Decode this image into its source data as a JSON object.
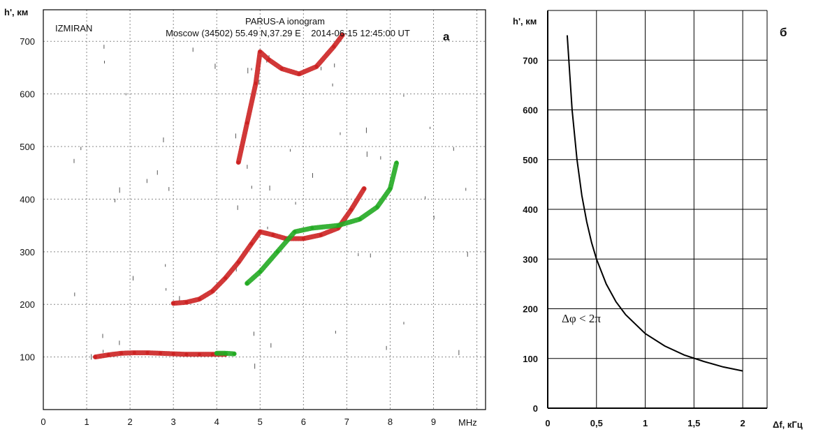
{
  "chart_data": [
    {
      "type": "scatter",
      "panel_label": "а",
      "title": "PARUS-A ionogram",
      "subtitle": "Moscow (34502) 55.49 N,37.29 E    2014-06-15 12:45:00 UT",
      "station": "IZMIRAN",
      "xlabel": "MHz",
      "ylabel": "h', км",
      "xlim": [
        0,
        10.2
      ],
      "ylim": [
        0,
        760
      ],
      "x_ticks": [
        "0",
        "1",
        "2",
        "3",
        "4",
        "5",
        "6",
        "7",
        "8",
        "9"
      ],
      "y_ticks": [
        "100",
        "200",
        "300",
        "400",
        "500",
        "600",
        "700"
      ],
      "grid": true,
      "series_colors": {
        "o_mode": "#cc2222",
        "x_mode": "#22aa22",
        "noise": "#555555"
      },
      "series": [
        {
          "mode": "o",
          "x": [
            1.2,
            1.5,
            1.8,
            2.1,
            2.4,
            2.7,
            3.0,
            3.3,
            3.6,
            3.9,
            4.2
          ],
          "y": [
            100,
            104,
            107,
            108,
            108,
            107,
            106,
            105,
            105,
            105,
            105
          ]
        },
        {
          "mode": "x",
          "x": [
            4.0,
            4.2,
            4.4
          ],
          "y": [
            107,
            107,
            106
          ]
        },
        {
          "mode": "o",
          "x": [
            3.0,
            3.3,
            3.6,
            3.9,
            4.2,
            4.5,
            4.8,
            5.0,
            5.3,
            5.6,
            6.0,
            6.4,
            6.8,
            7.1,
            7.4
          ],
          "y": [
            202,
            204,
            210,
            225,
            250,
            280,
            315,
            338,
            332,
            325,
            325,
            332,
            345,
            380,
            420
          ]
        },
        {
          "mode": "x",
          "x": [
            4.7,
            5.0,
            5.4,
            5.8,
            6.2,
            6.8,
            7.3,
            7.7,
            8.0,
            8.15
          ],
          "y": [
            240,
            262,
            300,
            338,
            345,
            350,
            362,
            385,
            420,
            470
          ]
        },
        {
          "mode": "o",
          "x": [
            4.5,
            4.7,
            4.9,
            5.0,
            5.2,
            5.5,
            5.9,
            6.3,
            6.7,
            6.9
          ],
          "y": [
            470,
            545,
            620,
            680,
            665,
            648,
            638,
            652,
            690,
            712
          ]
        }
      ]
    },
    {
      "type": "line",
      "panel_label": "б",
      "xlabel": "Δf, кГц",
      "ylabel": "h', км",
      "xlim": [
        0,
        2.25
      ],
      "ylim": [
        0,
        800
      ],
      "x_ticks": [
        "0",
        "0,5",
        "1",
        "1,5",
        "2"
      ],
      "y_ticks": [
        "0",
        "100",
        "200",
        "300",
        "400",
        "500",
        "600",
        "700"
      ],
      "grid": true,
      "annotation": "Δφ < 2π",
      "series": [
        {
          "x": [
            0.2,
            0.25,
            0.3,
            0.35,
            0.4,
            0.45,
            0.5,
            0.6,
            0.7,
            0.8,
            1.0,
            1.2,
            1.4,
            1.6,
            1.8,
            2.0
          ],
          "y": [
            750,
            600,
            500,
            428,
            375,
            333,
            300,
            250,
            214,
            188,
            150,
            125,
            107,
            94,
            83,
            75
          ]
        }
      ]
    }
  ]
}
